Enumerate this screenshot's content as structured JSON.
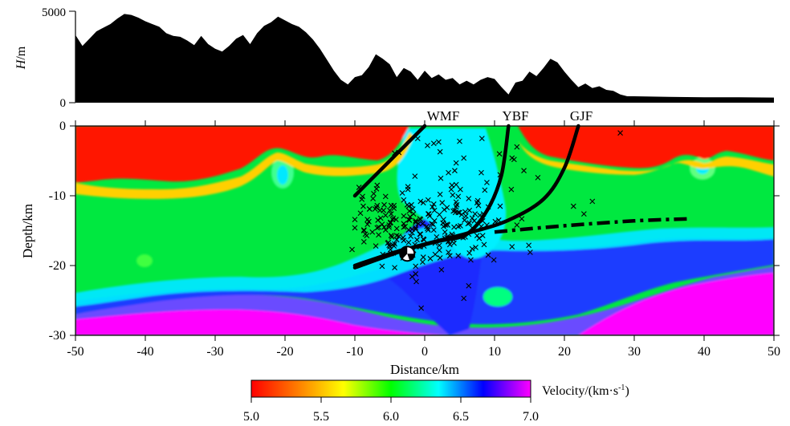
{
  "chart_data": [
    {
      "type": "area",
      "ylabel": "H/m",
      "ylabel_italic_part": "H",
      "ylabel_unit_part": "/m",
      "yticks": [
        "0",
        "5000"
      ],
      "ylim": [
        0,
        5000
      ],
      "xlim": [
        -50,
        50
      ],
      "fill_color": "#000000",
      "x": [
        -50,
        -49,
        -48,
        -47,
        -46,
        -45,
        -44,
        -43,
        -42,
        -41,
        -40,
        -39,
        -38,
        -37,
        -36,
        -35,
        -34,
        -33,
        -32,
        -31,
        -30,
        -29,
        -28,
        -27,
        -26,
        -25,
        -24,
        -23,
        -22,
        -21,
        -20,
        -19,
        -18,
        -17,
        -16,
        -15,
        -14,
        -13,
        -12,
        -11,
        -10,
        -9,
        -8,
        -7,
        -6,
        -5,
        -4,
        -3,
        -2,
        -1,
        0,
        1,
        2,
        3,
        4,
        5,
        6,
        7,
        8,
        9,
        10,
        11,
        12,
        13,
        14,
        15,
        16,
        17,
        18,
        19,
        20,
        21,
        22,
        23,
        24,
        25,
        26,
        27,
        28,
        29,
        30,
        35,
        40,
        45,
        50
      ],
      "values": [
        3700,
        3100,
        3500,
        3900,
        4100,
        4300,
        4600,
        4850,
        4800,
        4650,
        4450,
        4300,
        4150,
        3800,
        3650,
        3600,
        3400,
        3150,
        3650,
        3200,
        2950,
        2800,
        3100,
        3500,
        3700,
        3200,
        3800,
        4200,
        4400,
        4700,
        4500,
        4300,
        4150,
        3850,
        3450,
        2950,
        2350,
        1750,
        1250,
        1000,
        1400,
        1500,
        1950,
        2650,
        2400,
        2100,
        1400,
        1900,
        1700,
        1250,
        1750,
        1350,
        1550,
        1250,
        1350,
        1000,
        1200,
        1000,
        1250,
        1400,
        1300,
        850,
        450,
        1100,
        1200,
        1700,
        1450,
        1900,
        2400,
        2200,
        1700,
        1250,
        850,
        1050,
        800,
        900,
        700,
        650,
        450,
        350,
        350,
        320,
        300,
        300,
        280
      ]
    },
    {
      "type": "heatmap",
      "xlabel": "Distance/km",
      "ylabel": "Depth/km",
      "xlim": [
        -50,
        50
      ],
      "ylim": [
        -30,
        0
      ],
      "xticks": [
        "-50",
        "-40",
        "-30",
        "-20",
        "-10",
        "0",
        "10",
        "20",
        "30",
        "40",
        "50"
      ],
      "yticks": [
        "0",
        "-10",
        "-20",
        "-30"
      ],
      "colorbar": {
        "label": "Velocity/(km·s",
        "label_sup": "-1",
        "label_end": ")",
        "ticks": [
          "5.0",
          "5.5",
          "6.0",
          "6.5",
          "7.0"
        ],
        "range": [
          5.0,
          7.0
        ],
        "colors": [
          "#ff0000",
          "#ff8000",
          "#ffff00",
          "#00ff00",
          "#00ffff",
          "#0000ff",
          "#ff00ff"
        ]
      },
      "faults": [
        {
          "name": "WMF",
          "points": [
            [
              -10,
              -10
            ],
            [
              -6,
              -6
            ],
            [
              -3,
              -3
            ],
            [
              0,
              0
            ]
          ]
        },
        {
          "name": "YBF",
          "points": [
            [
              -10,
              -20
            ],
            [
              -4,
              -18
            ],
            [
              2,
              -16.5
            ],
            [
              6,
              -15.5
            ],
            [
              9,
              -12
            ],
            [
              11,
              -7
            ],
            [
              12,
              0
            ]
          ]
        },
        {
          "name": "GJF",
          "points": [
            [
              -10,
              -20.3
            ],
            [
              -2,
              -17.5
            ],
            [
              6,
              -15.4
            ],
            [
              12,
              -13.5
            ],
            [
              17,
              -10.5
            ],
            [
              20,
              -6
            ],
            [
              22,
              0
            ]
          ]
        }
      ],
      "dashed_line": [
        [
          10,
          -15.2
        ],
        [
          20,
          -14.3
        ],
        [
          30,
          -13.6
        ],
        [
          38,
          -13.3
        ]
      ],
      "mainshock": [
        -2.5,
        -18.3
      ],
      "events": [
        [
          -7.0,
          -17.2
        ],
        [
          -5.1,
          -17.1
        ],
        [
          10.1,
          -13.7
        ],
        [
          -5.1,
          -14.5
        ],
        [
          8.3,
          -13.6
        ],
        [
          7.1,
          -13.6
        ],
        [
          -7.9,
          -11.9
        ],
        [
          3.3,
          -15.8
        ],
        [
          -7.1,
          -11.9
        ],
        [
          1.5,
          -16.8
        ],
        [
          -7.5,
          -15.2
        ],
        [
          -1.4,
          -7.2
        ],
        [
          6.8,
          -13.2
        ],
        [
          2.2,
          -18.9
        ],
        [
          -0.3,
          -19.5
        ],
        [
          2.3,
          -7.5
        ],
        [
          8.1,
          -6.7
        ],
        [
          3.2,
          -14.1
        ],
        [
          1.4,
          -13.6
        ],
        [
          -0.9,
          -14.0
        ],
        [
          15.1,
          -18.1
        ],
        [
          -0.3,
          -14.0
        ],
        [
          -2.0,
          -18.8
        ],
        [
          2.1,
          -17.8
        ],
        [
          -4.4,
          -11.4
        ],
        [
          -0.2,
          -16.2
        ],
        [
          -4.3,
          -20.3
        ],
        [
          -4.9,
          -13.8
        ],
        [
          2.8,
          -12.0
        ],
        [
          13.2,
          -14.2
        ],
        [
          6.3,
          -10.4
        ],
        [
          4.2,
          -16.8
        ],
        [
          -1.7,
          -11.9
        ],
        [
          3.9,
          -15.5
        ],
        [
          -5.8,
          -11.3
        ],
        [
          -6.6,
          -15.6
        ],
        [
          -0.1,
          -16.3
        ],
        [
          3.2,
          -11.7
        ],
        [
          0.5,
          -14.9
        ],
        [
          0.8,
          -19.0
        ],
        [
          -3.0,
          -14.0
        ],
        [
          1.3,
          -11.2
        ],
        [
          4.5,
          -5.3
        ],
        [
          -9.2,
          -12.5
        ],
        [
          -7.4,
          -10.4
        ],
        [
          7.8,
          -16.1
        ],
        [
          8.5,
          -17.0
        ],
        [
          -10.4,
          -17.7
        ],
        [
          -6.9,
          -9.0
        ],
        [
          -1.3,
          -14.8
        ],
        [
          2.2,
          -9.8
        ],
        [
          13.9,
          -13.3
        ],
        [
          -0.6,
          -17.3
        ],
        [
          -3.0,
          -12.9
        ],
        [
          2.9,
          -15.2
        ],
        [
          -5.0,
          -12.1
        ],
        [
          2.7,
          -14.4
        ],
        [
          -8.8,
          -11.5
        ],
        [
          -2.3,
          -13.4
        ],
        [
          -1.1,
          -16.3
        ],
        [
          -6.1,
          -20.1
        ],
        [
          -0.8,
          -17.3
        ],
        [
          10.8,
          -7.0
        ],
        [
          6.8,
          -14.6
        ],
        [
          -4.5,
          -18.2
        ],
        [
          -4.6,
          -17.0
        ],
        [
          0.4,
          -14.7
        ],
        [
          8.9,
          -14.2
        ],
        [
          -3.2,
          -9.6
        ],
        [
          3.9,
          -8.5
        ],
        [
          3.0,
          -14.2
        ],
        [
          -2.1,
          -13.0
        ],
        [
          1.4,
          -12.1
        ],
        [
          0.5,
          -12.6
        ],
        [
          12.5,
          -17.3
        ],
        [
          9.1,
          -18.5
        ],
        [
          -6.7,
          -13.5
        ],
        [
          1.5,
          -18.4
        ],
        [
          -0.6,
          -15.5
        ],
        [
          1.0,
          -14.0
        ],
        [
          -3.1,
          -16.0
        ],
        [
          2.1,
          -12.7
        ],
        [
          -8.2,
          -14.1
        ],
        [
          1.7,
          -15.9
        ],
        [
          -5.8,
          -14.5
        ],
        [
          6.6,
          -19.2
        ],
        [
          0.5,
          -10.6
        ],
        [
          -3.1,
          -18.9
        ],
        [
          4.3,
          -6.4
        ],
        [
          4.6,
          -11.3
        ],
        [
          7.3,
          -17.4
        ],
        [
          4.8,
          -12.4
        ],
        [
          4.1,
          -16.3
        ],
        [
          1.2,
          -14.1
        ],
        [
          10.6,
          -13.5
        ],
        [
          -0.1,
          -17.2
        ],
        [
          -1.3,
          -20.1
        ],
        [
          5.9,
          -12.9
        ],
        [
          4.1,
          -12.2
        ],
        [
          2.4,
          -20.6
        ],
        [
          -5.6,
          -14.9
        ],
        [
          5.6,
          -4.6
        ],
        [
          -4.0,
          -16.3
        ],
        [
          1.3,
          -14.9
        ],
        [
          3.2,
          -16.0
        ],
        [
          -9.4,
          -8.8
        ],
        [
          -8.9,
          -10.1
        ],
        [
          8.9,
          -8.1
        ],
        [
          5.0,
          -12.4
        ],
        [
          -4.3,
          -16.9
        ],
        [
          -7.3,
          -9.7
        ],
        [
          -2.4,
          -8.7
        ],
        [
          -9.0,
          -10.5
        ],
        [
          -1.3,
          -14.6
        ],
        [
          4.5,
          -11.6
        ],
        [
          3.4,
          -6.7
        ],
        [
          -6.0,
          -18.4
        ],
        [
          -2.0,
          -15.8
        ],
        [
          -5.6,
          -10.1
        ],
        [
          6.8,
          -17.6
        ],
        [
          3.4,
          -16.5
        ],
        [
          9.1,
          -11.6
        ],
        [
          -6.4,
          -12.1
        ],
        [
          5.7,
          -13.5
        ],
        [
          -1.4,
          -17.0
        ],
        [
          -10.0,
          -14.6
        ],
        [
          -4.8,
          -11.4
        ],
        [
          -5.3,
          -16.8
        ],
        [
          4.8,
          -10.1
        ],
        [
          -4.4,
          -11.8
        ],
        [
          2.1,
          -17.1
        ],
        [
          3.4,
          -18.1
        ],
        [
          7.7,
          -11.4
        ],
        [
          -8.2,
          -13.4
        ],
        [
          -4.9,
          -13.9
        ],
        [
          -8.7,
          -15.0
        ],
        [
          -3.0,
          -10.6
        ],
        [
          -0.2,
          -18.8
        ],
        [
          8.6,
          -9.2
        ],
        [
          -2.8,
          -14.4
        ],
        [
          -4.8,
          -12.6
        ],
        [
          -8.5,
          -15.5
        ],
        [
          -4.1,
          -13.4
        ],
        [
          -0.6,
          -10.8
        ],
        [
          -5.9,
          -12.1
        ],
        [
          -6.3,
          -13.2
        ],
        [
          -4.0,
          -15.7
        ],
        [
          5.1,
          -14.3
        ],
        [
          2.9,
          -16.1
        ],
        [
          -1.3,
          -21.2
        ],
        [
          4.2,
          -14.5
        ],
        [
          -1.3,
          -13.8
        ],
        [
          4.5,
          -8.4
        ],
        [
          5.3,
          -12.7
        ],
        [
          -1.3,
          -13.6
        ],
        [
          -6.1,
          -14.1
        ],
        [
          12.4,
          -9.1
        ],
        [
          10.8,
          -11.5
        ],
        [
          -4.8,
          -15.7
        ],
        [
          5.1,
          -9.1
        ],
        [
          -4.0,
          -14.7
        ],
        [
          3.6,
          -18.6
        ],
        [
          7.9,
          -12.8
        ],
        [
          4.4,
          -12.4
        ],
        [
          -2.2,
          -12.2
        ],
        [
          1.3,
          -2.5
        ],
        [
          -4.8,
          -18.3
        ],
        [
          -2.5,
          -11.3
        ],
        [
          -8.3,
          -15.7
        ],
        [
          4.0,
          -9.9
        ],
        [
          3.4,
          -16.6
        ],
        [
          -3.7,
          -15.8
        ],
        [
          -0.7,
          -13.3
        ],
        [
          4.5,
          -10.9
        ],
        [
          -2.3,
          -11.5
        ],
        [
          -6.8,
          -14.6
        ],
        [
          4.3,
          -12.1
        ],
        [
          7.5,
          -15.7
        ],
        [
          7.6,
          -10.7
        ],
        [
          6.3,
          -15.5
        ],
        [
          5.8,
          -15.9
        ],
        [
          -8.7,
          -14.9
        ],
        [
          8.1,
          -14.4
        ],
        [
          -4.6,
          -13.4
        ],
        [
          -4.8,
          -15.7
        ],
        [
          2.5,
          -11.0
        ],
        [
          9.9,
          -19.2
        ],
        [
          8.3,
          -15.7
        ],
        [
          -4.5,
          -13.2
        ],
        [
          -3.0,
          -14.5
        ],
        [
          -0.7,
          -15.5
        ],
        [
          -6.6,
          -14.5
        ],
        [
          6.4,
          -12.1
        ],
        [
          14.9,
          -17.1
        ],
        [
          -8.0,
          -13.7
        ],
        [
          -5.2,
          -16.7
        ],
        [
          -4.9,
          -17.7
        ],
        [
          -2.4,
          -9.1
        ],
        [
          7.5,
          -11.0
        ],
        [
          -2.3,
          -16.7
        ],
        [
          -10.0,
          -13.4
        ],
        [
          -0.2,
          -11.0
        ],
        [
          -2.9,
          -18.4
        ],
        [
          4.8,
          -18.6
        ],
        [
          -4.7,
          -15.9
        ],
        [
          -1.6,
          -17.8
        ],
        [
          3.6,
          -17.0
        ],
        [
          -8.7,
          -16.6
        ],
        [
          -1.6,
          -12.6
        ],
        [
          -1.7,
          -18.5
        ],
        [
          6.2,
          -14.0
        ],
        [
          -5.6,
          -12.8
        ],
        [
          6.4,
          -13.9
        ],
        [
          -5.0,
          -17.3
        ],
        [
          -6.8,
          -8.5
        ],
        [
          -4.4,
          -17.2
        ],
        [
          7.2,
          -12.6
        ],
        [
          -2.3,
          -14.9
        ],
        [
          -0.6,
          -13.4
        ],
        [
          3.3,
          -14.2
        ],
        [
          0.7,
          -12.9
        ],
        [
          -1.9,
          -11.3
        ],
        [
          2.7,
          -13.4
        ],
        [
          -7.9,
          -11.9
        ],
        [
          4.8,
          -14.4
        ],
        [
          2.2,
          -3.7
        ],
        [
          -6.9,
          -11.7
        ],
        [
          -1.8,
          -15.3
        ],
        [
          5.8,
          -12.3
        ],
        [
          4.0,
          -15.7
        ],
        [
          -1.8,
          -14.8
        ],
        [
          -3.0,
          -16.4
        ],
        [
          0.3,
          -14.4
        ],
        [
          6.4,
          -18.2
        ],
        [
          1.1,
          -11.6
        ],
        [
          2.6,
          -13.9
        ],
        [
          -5.1,
          -14.2
        ],
        [
          -2.2,
          -13.5
        ],
        [
          0.6,
          -12.6
        ],
        [
          3.8,
          -9.1
        ],
        [
          -6.8,
          -11.4
        ],
        [
          12.5,
          -4.6
        ],
        [
          5.5,
          -16.0
        ],
        [
          8.4,
          -12.6
        ],
        [
          13.2,
          -3.0
        ],
        [
          21.3,
          -11.5
        ],
        [
          22.8,
          -12.6
        ],
        [
          24.0,
          -10.8
        ],
        [
          14.2,
          -6.4
        ],
        [
          16.2,
          -7.4
        ],
        [
          28.0,
          -1.0
        ],
        [
          -4.3,
          -3.9
        ],
        [
          -3.7,
          -3.8
        ],
        [
          -1.0,
          -1.8
        ],
        [
          2.0,
          -2.3
        ],
        [
          5.0,
          -2.2
        ],
        [
          8.2,
          -1.8
        ],
        [
          -1.2,
          -22.3
        ],
        [
          -1.8,
          -21.6
        ],
        [
          -0.5,
          -26.1
        ],
        [
          6.3,
          -22.9
        ],
        [
          5.6,
          -24.7
        ],
        [
          0.4,
          -2.8
        ],
        [
          10.7,
          -4.0
        ],
        [
          12.8,
          -4.8
        ]
      ]
    }
  ]
}
